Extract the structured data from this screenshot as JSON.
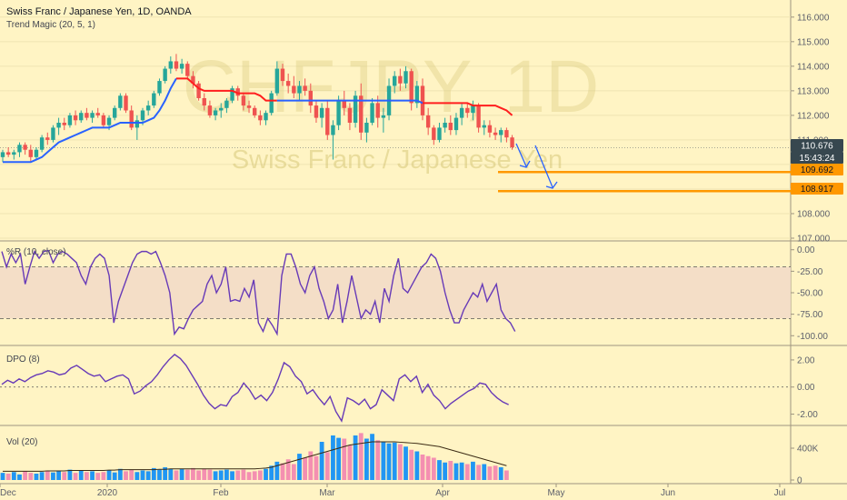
{
  "header": {
    "title": "Swiss Franc / Japanese Yen, 1D, OANDA",
    "indicator": "Trend Magic (20, 5, 1)"
  },
  "watermark": {
    "symbol": "CHFJPY, 1D",
    "name": "Swiss Franc / Japanese Yen"
  },
  "panels": {
    "wr_label": "%R (10, close)",
    "dpo_label": "DPO (8)",
    "vol_label": "Vol (20)"
  },
  "price_tags": {
    "last": "110.676",
    "countdown": "15:43:24",
    "level1": "109.692",
    "level2": "108.917"
  },
  "colors": {
    "background": "#fff4c4",
    "up": "#26a69a",
    "down": "#ef5350",
    "trend_up": "#2962ff",
    "trend_down": "#ff1e1e",
    "level": "#ff9800",
    "arrow": "#2962ff",
    "indicator": "#673ab7",
    "vol_up": "#2196f3",
    "vol_down": "#f48fb1"
  },
  "chart_data": [
    {
      "type": "candlestick",
      "title": "Swiss Franc / Japanese Yen, 1D, OANDA",
      "y_ticks": [
        "116.000",
        "115.000",
        "114.000",
        "113.000",
        "112.000",
        "111.000",
        "110.000",
        "109.000",
        "108.000",
        "107.000"
      ],
      "ylim": [
        107,
        116.4
      ],
      "x_ticks": [
        "Dec",
        "2020",
        "Feb",
        "Mar",
        "Apr",
        "May",
        "Jun",
        "Jul"
      ],
      "ohlc": [
        [
          110.3,
          110.6,
          110.1,
          110.5
        ],
        [
          110.5,
          110.7,
          110.3,
          110.4
        ],
        [
          110.4,
          110.6,
          110.2,
          110.5
        ],
        [
          110.5,
          110.9,
          110.3,
          110.8
        ],
        [
          110.8,
          110.9,
          110.4,
          110.6
        ],
        [
          110.6,
          110.8,
          110.1,
          110.3
        ],
        [
          110.3,
          110.7,
          110.2,
          110.6
        ],
        [
          110.6,
          111.2,
          110.5,
          111.1
        ],
        [
          111.1,
          111.3,
          110.8,
          111.0
        ],
        [
          111.0,
          111.6,
          110.9,
          111.5
        ],
        [
          111.5,
          111.9,
          111.2,
          111.7
        ],
        [
          111.7,
          111.9,
          111.4,
          111.6
        ],
        [
          111.6,
          112.1,
          111.5,
          112.0
        ],
        [
          112.0,
          112.2,
          111.6,
          111.8
        ],
        [
          111.8,
          112.2,
          111.7,
          112.1
        ],
        [
          112.1,
          112.3,
          111.8,
          111.9
        ],
        [
          111.9,
          112.2,
          111.7,
          112.1
        ],
        [
          112.1,
          112.3,
          111.9,
          112.0
        ],
        [
          112.0,
          112.1,
          111.5,
          111.6
        ],
        [
          111.6,
          112.0,
          111.4,
          111.9
        ],
        [
          111.9,
          112.4,
          111.8,
          112.3
        ],
        [
          112.3,
          112.9,
          112.2,
          112.8
        ],
        [
          112.8,
          112.9,
          112.1,
          112.2
        ],
        [
          112.2,
          112.4,
          111.4,
          111.5
        ],
        [
          111.5,
          112.0,
          111.0,
          111.8
        ],
        [
          111.8,
          112.3,
          111.6,
          112.2
        ],
        [
          112.2,
          112.6,
          112.0,
          112.4
        ],
        [
          112.4,
          113.0,
          112.3,
          112.9
        ],
        [
          112.9,
          113.5,
          112.8,
          113.4
        ],
        [
          113.4,
          114.0,
          113.3,
          113.9
        ],
        [
          113.9,
          114.4,
          113.7,
          114.2
        ],
        [
          114.2,
          114.5,
          113.8,
          113.9
        ],
        [
          113.9,
          114.3,
          113.7,
          114.1
        ],
        [
          114.1,
          114.2,
          113.5,
          113.6
        ],
        [
          113.6,
          113.8,
          113.1,
          113.3
        ],
        [
          113.3,
          113.4,
          112.6,
          112.7
        ],
        [
          112.7,
          112.9,
          112.2,
          112.4
        ],
        [
          112.4,
          112.6,
          111.9,
          112.0
        ],
        [
          112.0,
          112.3,
          111.8,
          112.2
        ],
        [
          112.2,
          112.5,
          111.9,
          112.3
        ],
        [
          112.3,
          112.7,
          112.1,
          112.6
        ],
        [
          112.6,
          113.2,
          112.5,
          113.1
        ],
        [
          113.1,
          113.2,
          112.6,
          112.8
        ],
        [
          112.8,
          112.9,
          112.2,
          112.4
        ],
        [
          112.4,
          112.6,
          112.1,
          112.3
        ],
        [
          112.3,
          112.4,
          111.9,
          112.0
        ],
        [
          112.0,
          112.2,
          111.6,
          111.8
        ],
        [
          111.8,
          112.2,
          111.6,
          112.1
        ],
        [
          112.1,
          113.0,
          112.0,
          112.9
        ],
        [
          112.9,
          114.2,
          112.8,
          113.9
        ],
        [
          113.9,
          114.1,
          113.2,
          113.4
        ],
        [
          113.4,
          113.7,
          112.9,
          113.2
        ],
        [
          113.2,
          113.6,
          112.7,
          112.9
        ],
        [
          112.9,
          113.4,
          112.6,
          113.2
        ],
        [
          113.2,
          113.5,
          112.8,
          113.0
        ],
        [
          113.0,
          113.3,
          112.1,
          112.4
        ],
        [
          112.4,
          112.6,
          111.7,
          111.9
        ],
        [
          111.9,
          112.5,
          111.5,
          112.3
        ],
        [
          112.3,
          112.6,
          111.0,
          111.2
        ],
        [
          111.2,
          111.8,
          110.2,
          111.6
        ],
        [
          111.6,
          112.8,
          111.4,
          112.6
        ],
        [
          112.6,
          113.0,
          112.0,
          112.3
        ],
        [
          112.3,
          112.5,
          111.4,
          111.7
        ],
        [
          111.7,
          113.0,
          111.5,
          112.8
        ],
        [
          112.8,
          113.3,
          111.0,
          111.3
        ],
        [
          111.3,
          111.9,
          110.9,
          111.7
        ],
        [
          111.7,
          112.7,
          111.6,
          112.5
        ],
        [
          112.5,
          112.8,
          111.5,
          111.9
        ],
        [
          111.9,
          112.3,
          111.3,
          112.0
        ],
        [
          112.0,
          113.5,
          111.8,
          113.2
        ],
        [
          113.2,
          113.8,
          112.9,
          113.6
        ],
        [
          113.6,
          113.9,
          113.0,
          113.3
        ],
        [
          113.3,
          114.0,
          113.1,
          113.8
        ],
        [
          113.8,
          113.9,
          112.2,
          112.5
        ],
        [
          112.5,
          113.4,
          112.3,
          113.2
        ],
        [
          113.2,
          113.5,
          111.8,
          112.0
        ],
        [
          112.0,
          112.3,
          111.2,
          111.5
        ],
        [
          111.5,
          111.6,
          110.8,
          111.0
        ],
        [
          111.0,
          111.7,
          110.9,
          111.5
        ],
        [
          111.5,
          111.9,
          111.3,
          111.7
        ],
        [
          111.7,
          112.0,
          111.2,
          111.4
        ],
        [
          111.4,
          112.1,
          111.2,
          111.9
        ],
        [
          111.9,
          112.5,
          111.6,
          112.3
        ],
        [
          112.3,
          112.5,
          111.9,
          112.1
        ],
        [
          112.1,
          112.6,
          111.8,
          112.4
        ],
        [
          112.4,
          112.5,
          111.3,
          111.5
        ],
        [
          111.5,
          111.8,
          111.2,
          111.6
        ],
        [
          111.6,
          111.8,
          111.1,
          111.3
        ],
        [
          111.3,
          111.5,
          111.0,
          111.2
        ],
        [
          111.2,
          111.5,
          110.9,
          111.4
        ],
        [
          111.4,
          111.5,
          110.9,
          111.1
        ],
        [
          111.1,
          111.2,
          110.6,
          110.7
        ]
      ],
      "trend_magic": [
        110.1,
        110.1,
        110.1,
        110.1,
        110.1,
        110.1,
        110.2,
        110.3,
        110.5,
        110.7,
        110.9,
        111.0,
        111.1,
        111.2,
        111.3,
        111.4,
        111.5,
        111.5,
        111.5,
        111.5,
        111.6,
        111.7,
        111.7,
        111.7,
        111.7,
        111.7,
        111.8,
        111.9,
        112.2,
        112.6,
        113.1,
        113.5,
        113.5,
        113.5,
        113.3,
        113.1,
        113.0,
        113.0,
        113.0,
        113.0,
        113.0,
        113.0,
        112.9,
        112.9,
        112.9,
        112.9,
        112.8,
        112.6,
        112.6,
        112.6,
        112.6,
        112.6,
        112.6,
        112.6,
        112.6,
        112.6,
        112.6,
        112.6,
        112.6,
        112.6,
        112.6,
        112.6,
        112.6,
        112.6,
        112.6,
        112.6,
        112.6,
        112.6,
        112.6,
        112.6,
        112.6,
        112.6,
        112.6,
        112.6,
        112.6,
        112.5,
        112.5,
        112.5,
        112.5,
        112.5,
        112.5,
        112.5,
        112.5,
        112.5,
        112.4,
        112.4,
        112.4,
        112.4,
        112.4,
        112.3,
        112.2,
        112.0
      ],
      "trend_flip_index": 32,
      "horizontal_levels": [
        109.692,
        108.917
      ],
      "last_price": 110.676
    },
    {
      "type": "line",
      "title": "%R (10, close)",
      "y_ticks": [
        "0.00",
        "-25.00",
        "-50.00",
        "-75.00",
        "-100.00"
      ],
      "ylim": [
        -105,
        5
      ],
      "band": [
        -80,
        -20
      ],
      "values": [
        -2,
        -20,
        -5,
        -15,
        -5,
        -40,
        -20,
        -2,
        -10,
        -2,
        -1,
        -15,
        -5,
        -2,
        -5,
        -10,
        -15,
        -30,
        -40,
        -20,
        -10,
        -5,
        -10,
        -30,
        -85,
        -60,
        -45,
        -30,
        -15,
        -5,
        -2,
        -2,
        -5,
        -2,
        -15,
        -30,
        -50,
        -98,
        -90,
        -92,
        -80,
        -70,
        -65,
        -60,
        -40,
        -30,
        -50,
        -40,
        -20,
        -60,
        -58,
        -60,
        -45,
        -55,
        -35,
        -85,
        -95,
        -80,
        -88,
        -98,
        -30,
        -5,
        -5,
        -20,
        -40,
        -50,
        -30,
        -20,
        -45,
        -60,
        -80,
        -70,
        -40,
        -85,
        -60,
        -30,
        -55,
        -80,
        -70,
        -75,
        -60,
        -85,
        -45,
        -60,
        -30,
        -10,
        -45,
        -50,
        -40,
        -30,
        -20,
        -15,
        -5,
        -10,
        -25,
        -50,
        -70,
        -85,
        -85,
        -70,
        -60,
        -50,
        -55,
        -40,
        -60,
        -50,
        -40,
        -70,
        -80,
        -85,
        -95
      ]
    },
    {
      "type": "line",
      "title": "DPO (8)",
      "y_ticks": [
        "2.00",
        "0.00",
        "-2.00"
      ],
      "ylim": [
        -2.7,
        2.8
      ],
      "values": [
        0.2,
        0.5,
        0.3,
        0.6,
        0.4,
        0.7,
        0.9,
        1.0,
        1.2,
        1.1,
        0.9,
        1.0,
        1.4,
        1.6,
        1.3,
        1.0,
        0.8,
        0.9,
        0.4,
        0.6,
        0.8,
        0.9,
        0.6,
        -0.5,
        -0.3,
        0.1,
        0.4,
        0.9,
        1.5,
        2.0,
        2.4,
        2.1,
        1.6,
        0.9,
        0.2,
        -0.6,
        -1.2,
        -1.6,
        -1.3,
        -1.4,
        -0.7,
        -0.4,
        0.3,
        -0.2,
        -0.9,
        -0.6,
        -1.0,
        -0.4,
        0.6,
        1.8,
        1.5,
        0.8,
        0.4,
        -0.5,
        -0.2,
        -0.8,
        -1.3,
        -0.7,
        -1.8,
        -2.5,
        -0.8,
        -1.0,
        -1.3,
        -0.9,
        -1.6,
        -1.3,
        -0.2,
        -0.6,
        -1.0,
        0.6,
        0.9,
        0.4,
        0.8,
        -0.4,
        0.2,
        -0.6,
        -1.0,
        -1.6,
        -1.2,
        -0.9,
        -0.6,
        -0.3,
        -0.1,
        0.3,
        0.2,
        -0.4,
        -0.8,
        -1.1,
        -1.3
      ]
    },
    {
      "type": "bar",
      "title": "Vol (20)",
      "y_ticks": [
        "400K",
        "0"
      ],
      "ylim": [
        0,
        640000
      ],
      "values": [
        90,
        80,
        100,
        70,
        110,
        90,
        80,
        100,
        120,
        95,
        110,
        100,
        130,
        90,
        120,
        100,
        110,
        90,
        100,
        120,
        95,
        140,
        110,
        130,
        100,
        120,
        110,
        150,
        130,
        160,
        140,
        120,
        140,
        130,
        150,
        120,
        140,
        130,
        110,
        120,
        130,
        110,
        120,
        130,
        100,
        110,
        120,
        140,
        180,
        230,
        210,
        260,
        200,
        330,
        280,
        360,
        300,
        480,
        350,
        560,
        530,
        520,
        440,
        560,
        590,
        520,
        580,
        500,
        480,
        460,
        470,
        450,
        420,
        380,
        360,
        320,
        300,
        280,
        250,
        220,
        240,
        210,
        220,
        200,
        230,
        190,
        200,
        170,
        180,
        160,
        120
      ],
      "ma": [
        110,
        110,
        110,
        110,
        110,
        110,
        110,
        110,
        115,
        115,
        115,
        115,
        120,
        120,
        120,
        120,
        120,
        120,
        120,
        125,
        125,
        130,
        130,
        130,
        130,
        130,
        130,
        130,
        135,
        135,
        140,
        140,
        140,
        140,
        140,
        140,
        140,
        140,
        140,
        140,
        140,
        140,
        140,
        140,
        140,
        140,
        145,
        150,
        160,
        180,
        200,
        220,
        240,
        260,
        280,
        300,
        320,
        340,
        360,
        380,
        400,
        420,
        440,
        450,
        460,
        470,
        480,
        480,
        480,
        480,
        480,
        475,
        470,
        465,
        460,
        450,
        440,
        430,
        420,
        400,
        380,
        360,
        340,
        320,
        300,
        280,
        260,
        240,
        220,
        200,
        180
      ]
    }
  ]
}
